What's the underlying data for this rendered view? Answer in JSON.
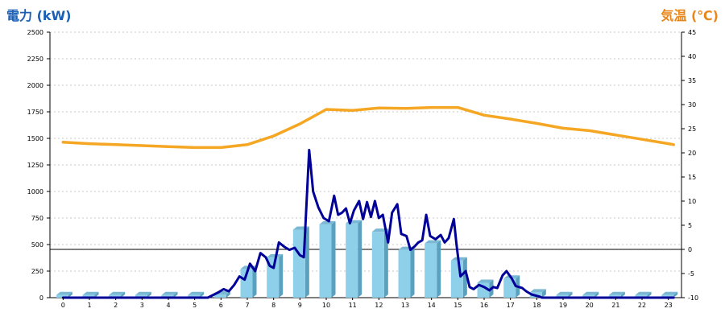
{
  "chart_data": {
    "type": "bar+line",
    "left_axis": {
      "label": "電力 (kW)",
      "ylim": [
        0,
        2500
      ],
      "ticks": [
        0,
        250,
        500,
        750,
        1000,
        1250,
        1500,
        1750,
        2000,
        2250,
        2500
      ],
      "color": "#1a5fb4"
    },
    "right_axis": {
      "label": "気温 (℃)",
      "ylim": [
        -10,
        45
      ],
      "ticks": [
        -10,
        -5,
        0,
        5,
        10,
        15,
        20,
        25,
        30,
        35,
        40,
        45
      ],
      "color": "#e8861a"
    },
    "categories": [
      "0",
      "1",
      "2",
      "3",
      "4",
      "5",
      "6",
      "7",
      "8",
      "9",
      "10",
      "11",
      "12",
      "13",
      "14",
      "15",
      "16",
      "17",
      "18",
      "19",
      "20",
      "21",
      "22",
      "23"
    ],
    "reference_line": {
      "value": 0,
      "axis": "right"
    },
    "grid": true,
    "series": [
      {
        "type": "bar",
        "axis": "left",
        "color": "#8ecfea",
        "values": [
          25,
          25,
          25,
          25,
          25,
          25,
          30,
          270,
          380,
          640,
          690,
          700,
          620,
          450,
          510,
          350,
          140,
          180,
          50,
          25,
          25,
          25,
          25,
          25
        ]
      },
      {
        "type": "line",
        "axis": "left",
        "color": "#000099",
        "points": [
          [
            0,
            0
          ],
          [
            1,
            0
          ],
          [
            2,
            0
          ],
          [
            3,
            0
          ],
          [
            4,
            0
          ],
          [
            5,
            0
          ],
          [
            5.5,
            0
          ],
          [
            5.9,
            50
          ],
          [
            6.1,
            80
          ],
          [
            6.3,
            60
          ],
          [
            6.5,
            120
          ],
          [
            6.7,
            200
          ],
          [
            6.9,
            170
          ],
          [
            7.1,
            320
          ],
          [
            7.3,
            250
          ],
          [
            7.5,
            420
          ],
          [
            7.7,
            380
          ],
          [
            7.85,
            300
          ],
          [
            8.0,
            280
          ],
          [
            8.2,
            520
          ],
          [
            8.4,
            480
          ],
          [
            8.6,
            450
          ],
          [
            8.8,
            470
          ],
          [
            9.0,
            400
          ],
          [
            9.15,
            380
          ],
          [
            9.35,
            1390
          ],
          [
            9.5,
            1000
          ],
          [
            9.7,
            850
          ],
          [
            9.9,
            750
          ],
          [
            10.1,
            720
          ],
          [
            10.3,
            960
          ],
          [
            10.45,
            780
          ],
          [
            10.6,
            800
          ],
          [
            10.75,
            840
          ],
          [
            10.9,
            700
          ],
          [
            11.05,
            820
          ],
          [
            11.25,
            910
          ],
          [
            11.4,
            740
          ],
          [
            11.55,
            900
          ],
          [
            11.7,
            760
          ],
          [
            11.85,
            910
          ],
          [
            12.0,
            750
          ],
          [
            12.15,
            780
          ],
          [
            12.35,
            520
          ],
          [
            12.5,
            800
          ],
          [
            12.7,
            880
          ],
          [
            12.85,
            600
          ],
          [
            13.05,
            580
          ],
          [
            13.2,
            450
          ],
          [
            13.35,
            480
          ],
          [
            13.5,
            520
          ],
          [
            13.65,
            540
          ],
          [
            13.8,
            780
          ],
          [
            13.95,
            580
          ],
          [
            14.15,
            550
          ],
          [
            14.35,
            590
          ],
          [
            14.5,
            520
          ],
          [
            14.65,
            560
          ],
          [
            14.85,
            740
          ],
          [
            14.95,
            500
          ],
          [
            15.1,
            200
          ],
          [
            15.3,
            250
          ],
          [
            15.45,
            100
          ],
          [
            15.6,
            80
          ],
          [
            15.8,
            120
          ],
          [
            16.0,
            100
          ],
          [
            16.2,
            70
          ],
          [
            16.35,
            100
          ],
          [
            16.5,
            90
          ],
          [
            16.7,
            210
          ],
          [
            16.85,
            250
          ],
          [
            17.05,
            180
          ],
          [
            17.2,
            110
          ],
          [
            17.45,
            90
          ],
          [
            17.6,
            60
          ],
          [
            17.8,
            30
          ],
          [
            18.1,
            10
          ],
          [
            18.2,
            0
          ],
          [
            19,
            0
          ],
          [
            20,
            0
          ],
          [
            21,
            0
          ],
          [
            22,
            0
          ],
          [
            23.2,
            0
          ]
        ]
      },
      {
        "type": "line",
        "axis": "right",
        "color": "#f5a623",
        "points": [
          [
            0,
            22.2
          ],
          [
            1,
            21.9
          ],
          [
            2,
            21.7
          ],
          [
            3,
            21.5
          ],
          [
            4,
            21.3
          ],
          [
            5,
            21.1
          ],
          [
            6,
            21.1
          ],
          [
            7,
            21.7
          ],
          [
            8,
            23.5
          ],
          [
            9,
            26.0
          ],
          [
            10,
            29.0
          ],
          [
            11,
            28.8
          ],
          [
            12,
            29.3
          ],
          [
            13,
            29.2
          ],
          [
            14,
            29.4
          ],
          [
            15,
            29.4
          ],
          [
            16,
            27.8
          ],
          [
            17,
            27.0
          ],
          [
            18,
            26.1
          ],
          [
            19,
            25.1
          ],
          [
            20,
            24.6
          ],
          [
            21,
            23.7
          ],
          [
            22,
            22.8
          ],
          [
            23,
            21.9
          ],
          [
            23.2,
            21.7
          ]
        ]
      }
    ]
  }
}
